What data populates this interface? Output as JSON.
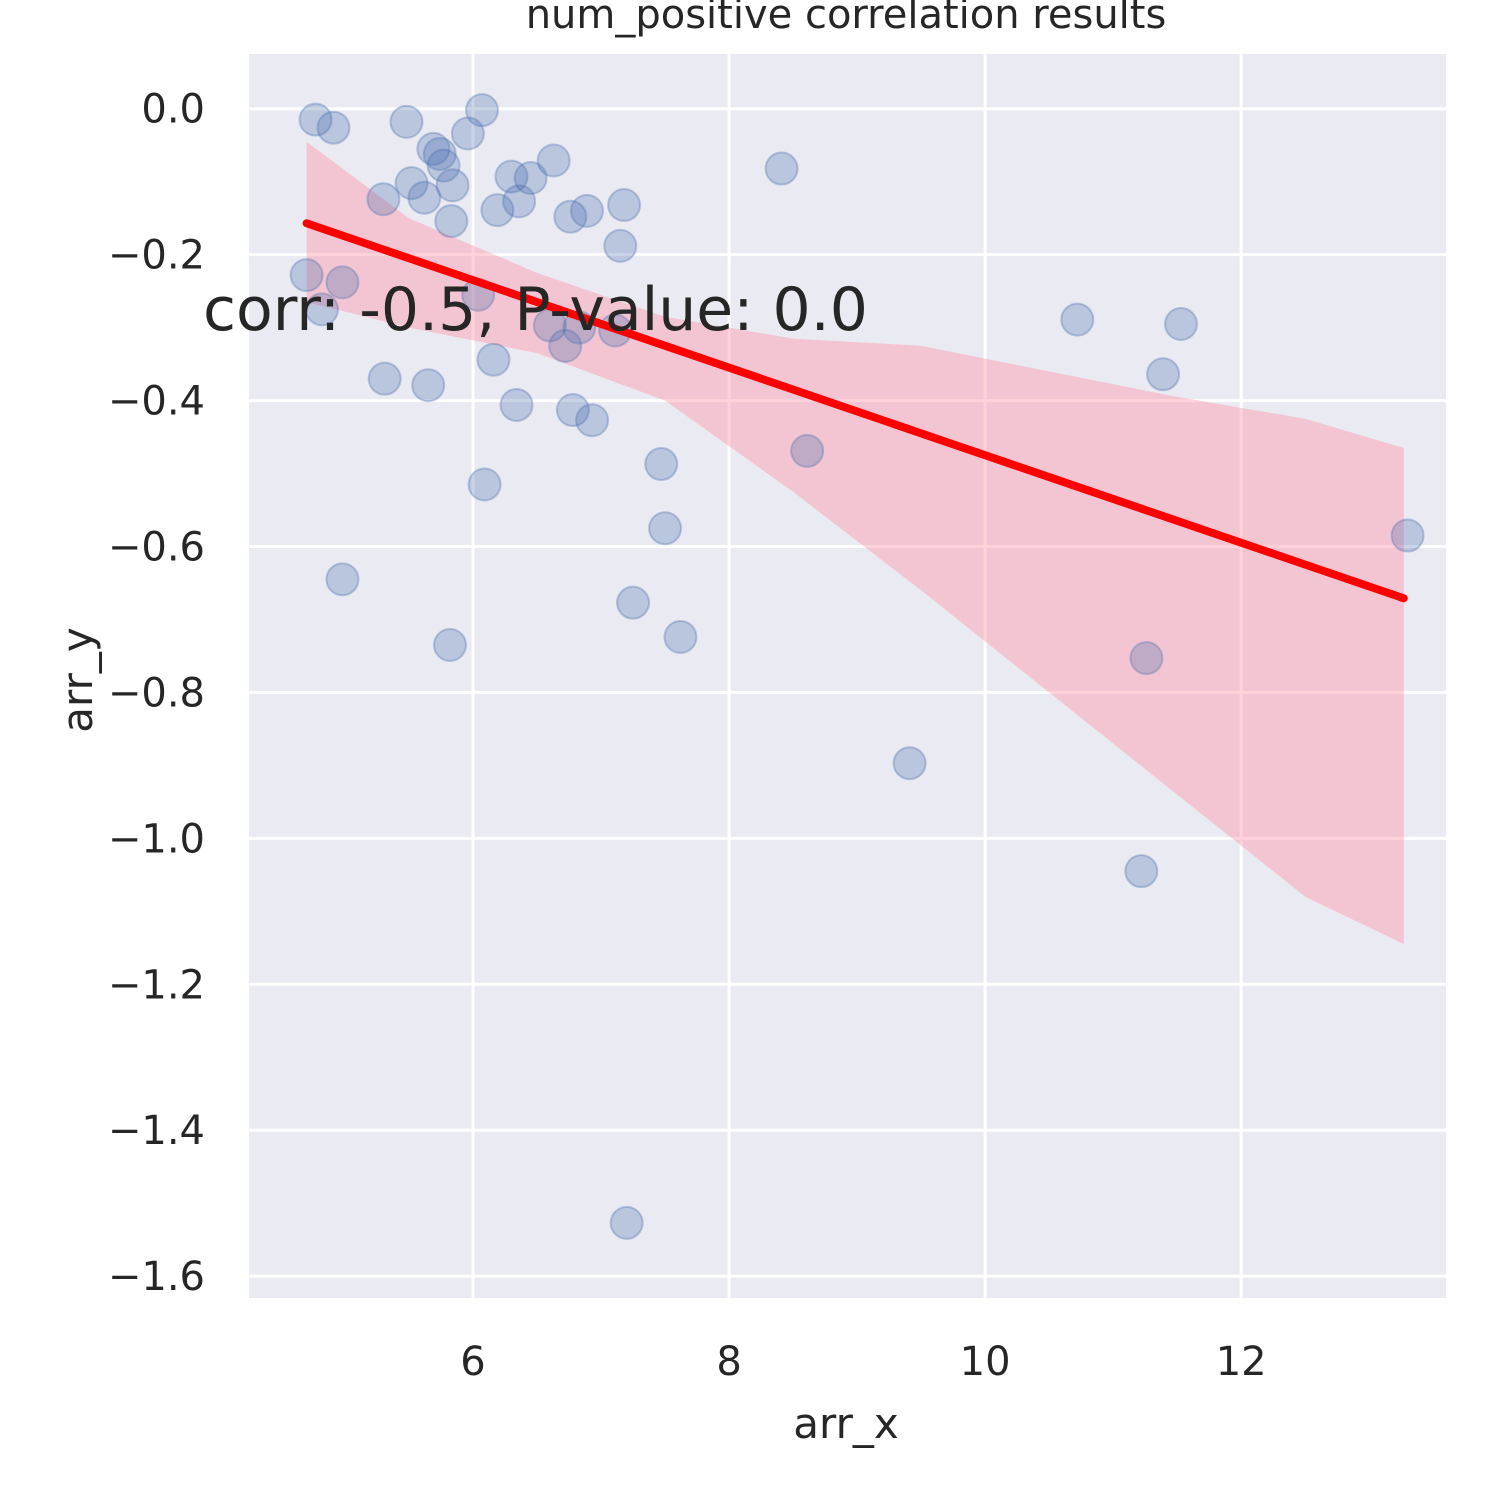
{
  "chart_data": {
    "type": "scatter",
    "title": "num_positive correlation results",
    "xlabel": "arr_x",
    "ylabel": "arr_y",
    "annotation": "corr: -0.5, P-value: 0.0",
    "xlim": [
      4.25,
      13.6
    ],
    "ylim": [
      -1.63,
      0.075
    ],
    "xticks": [
      6,
      8,
      10,
      12
    ],
    "xtick_labels": [
      "6",
      "8",
      "10",
      "12"
    ],
    "yticks": [
      0.0,
      -0.2,
      -0.4,
      -0.6,
      -0.8,
      -1.0,
      -1.2,
      -1.4,
      -1.6
    ],
    "ytick_labels": [
      "0.0",
      "−0.2",
      "−0.4",
      "−0.6",
      "−0.8",
      "−1.0",
      "−1.2",
      "−1.4",
      "−1.6"
    ],
    "grid": true,
    "colors": {
      "background": "#eaeaf2",
      "grid": "#ffffff",
      "points": "#4c72b0",
      "regression_line": "#ff0000",
      "confidence_band": "#ff9aaa"
    },
    "points": [
      {
        "x": 4.77,
        "y": -0.015
      },
      {
        "x": 4.91,
        "y": -0.026
      },
      {
        "x": 5.48,
        "y": -0.018
      },
      {
        "x": 6.07,
        "y": -0.002
      },
      {
        "x": 5.96,
        "y": -0.034
      },
      {
        "x": 5.69,
        "y": -0.055
      },
      {
        "x": 5.74,
        "y": -0.062
      },
      {
        "x": 5.77,
        "y": -0.078
      },
      {
        "x": 5.84,
        "y": -0.105
      },
      {
        "x": 5.52,
        "y": -0.102
      },
      {
        "x": 5.62,
        "y": -0.122
      },
      {
        "x": 5.3,
        "y": -0.124
      },
      {
        "x": 5.83,
        "y": -0.154
      },
      {
        "x": 6.3,
        "y": -0.093
      },
      {
        "x": 6.45,
        "y": -0.095
      },
      {
        "x": 6.63,
        "y": -0.071
      },
      {
        "x": 6.36,
        "y": -0.127
      },
      {
        "x": 6.19,
        "y": -0.139
      },
      {
        "x": 6.76,
        "y": -0.148
      },
      {
        "x": 6.89,
        "y": -0.14
      },
      {
        "x": 7.18,
        "y": -0.132
      },
      {
        "x": 7.15,
        "y": -0.188
      },
      {
        "x": 8.41,
        "y": -0.082
      },
      {
        "x": 4.7,
        "y": -0.228
      },
      {
        "x": 4.98,
        "y": -0.238
      },
      {
        "x": 4.82,
        "y": -0.275
      },
      {
        "x": 6.04,
        "y": -0.255
      },
      {
        "x": 6.6,
        "y": -0.297
      },
      {
        "x": 6.83,
        "y": -0.3
      },
      {
        "x": 7.11,
        "y": -0.304
      },
      {
        "x": 6.72,
        "y": -0.325
      },
      {
        "x": 6.16,
        "y": -0.344
      },
      {
        "x": 5.31,
        "y": -0.37
      },
      {
        "x": 5.65,
        "y": -0.379
      },
      {
        "x": 6.34,
        "y": -0.406
      },
      {
        "x": 6.78,
        "y": -0.413
      },
      {
        "x": 6.93,
        "y": -0.427
      },
      {
        "x": 7.47,
        "y": -0.487
      },
      {
        "x": 6.09,
        "y": -0.515
      },
      {
        "x": 7.5,
        "y": -0.575
      },
      {
        "x": 4.98,
        "y": -0.645
      },
      {
        "x": 7.25,
        "y": -0.677
      },
      {
        "x": 7.62,
        "y": -0.724
      },
      {
        "x": 5.82,
        "y": -0.735
      },
      {
        "x": 8.61,
        "y": -0.469
      },
      {
        "x": 10.72,
        "y": -0.289
      },
      {
        "x": 11.53,
        "y": -0.295
      },
      {
        "x": 11.39,
        "y": -0.364
      },
      {
        "x": 13.3,
        "y": -0.585
      },
      {
        "x": 11.26,
        "y": -0.753
      },
      {
        "x": 9.41,
        "y": -0.897
      },
      {
        "x": 11.22,
        "y": -1.045
      },
      {
        "x": 7.2,
        "y": -1.527
      }
    ],
    "regression": {
      "x": [
        4.7,
        13.27
      ],
      "y": [
        -0.157,
        -0.671
      ]
    },
    "confidence_band": {
      "x": [
        4.7,
        5.5,
        6.5,
        7.5,
        8.5,
        9.5,
        10.5,
        11.5,
        12.5,
        13.27
      ],
      "upper": [
        -0.045,
        -0.15,
        -0.225,
        -0.285,
        -0.315,
        -0.325,
        -0.36,
        -0.395,
        -0.425,
        -0.465
      ],
      "lower": [
        -0.265,
        -0.3,
        -0.335,
        -0.4,
        -0.525,
        -0.66,
        -0.8,
        -0.94,
        -1.08,
        -1.145
      ]
    }
  }
}
